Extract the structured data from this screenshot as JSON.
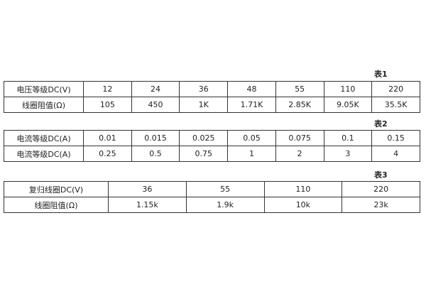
{
  "table1": {
    "caption": "表1",
    "rows": [
      [
        "电压等级DC(V)",
        "12",
        "24",
        "36",
        "48",
        "55",
        "110",
        "220"
      ],
      [
        "线圈阻值(Ω)",
        "105",
        "450",
        "1K",
        "1.71K",
        "2.85K",
        "9.05K",
        "35.5K"
      ]
    ]
  },
  "table2": {
    "caption": "表2",
    "rows": [
      [
        "电流等级DC(A)",
        "0.01",
        "0.015",
        "0.025",
        "0.05",
        "0.075",
        "0.1",
        "0.15"
      ],
      [
        "电流等级DC(A)",
        "0.25",
        "0.5",
        "0.75",
        "1",
        "2",
        "3",
        "4"
      ]
    ]
  },
  "table3": {
    "caption": "表3",
    "rows": [
      [
        "复归线圈DC(V)",
        "36",
        "55",
        "110",
        "220"
      ],
      [
        "线圈阻值(Ω)",
        "1.15k",
        "1.9k",
        "10k",
        "23k"
      ]
    ]
  }
}
